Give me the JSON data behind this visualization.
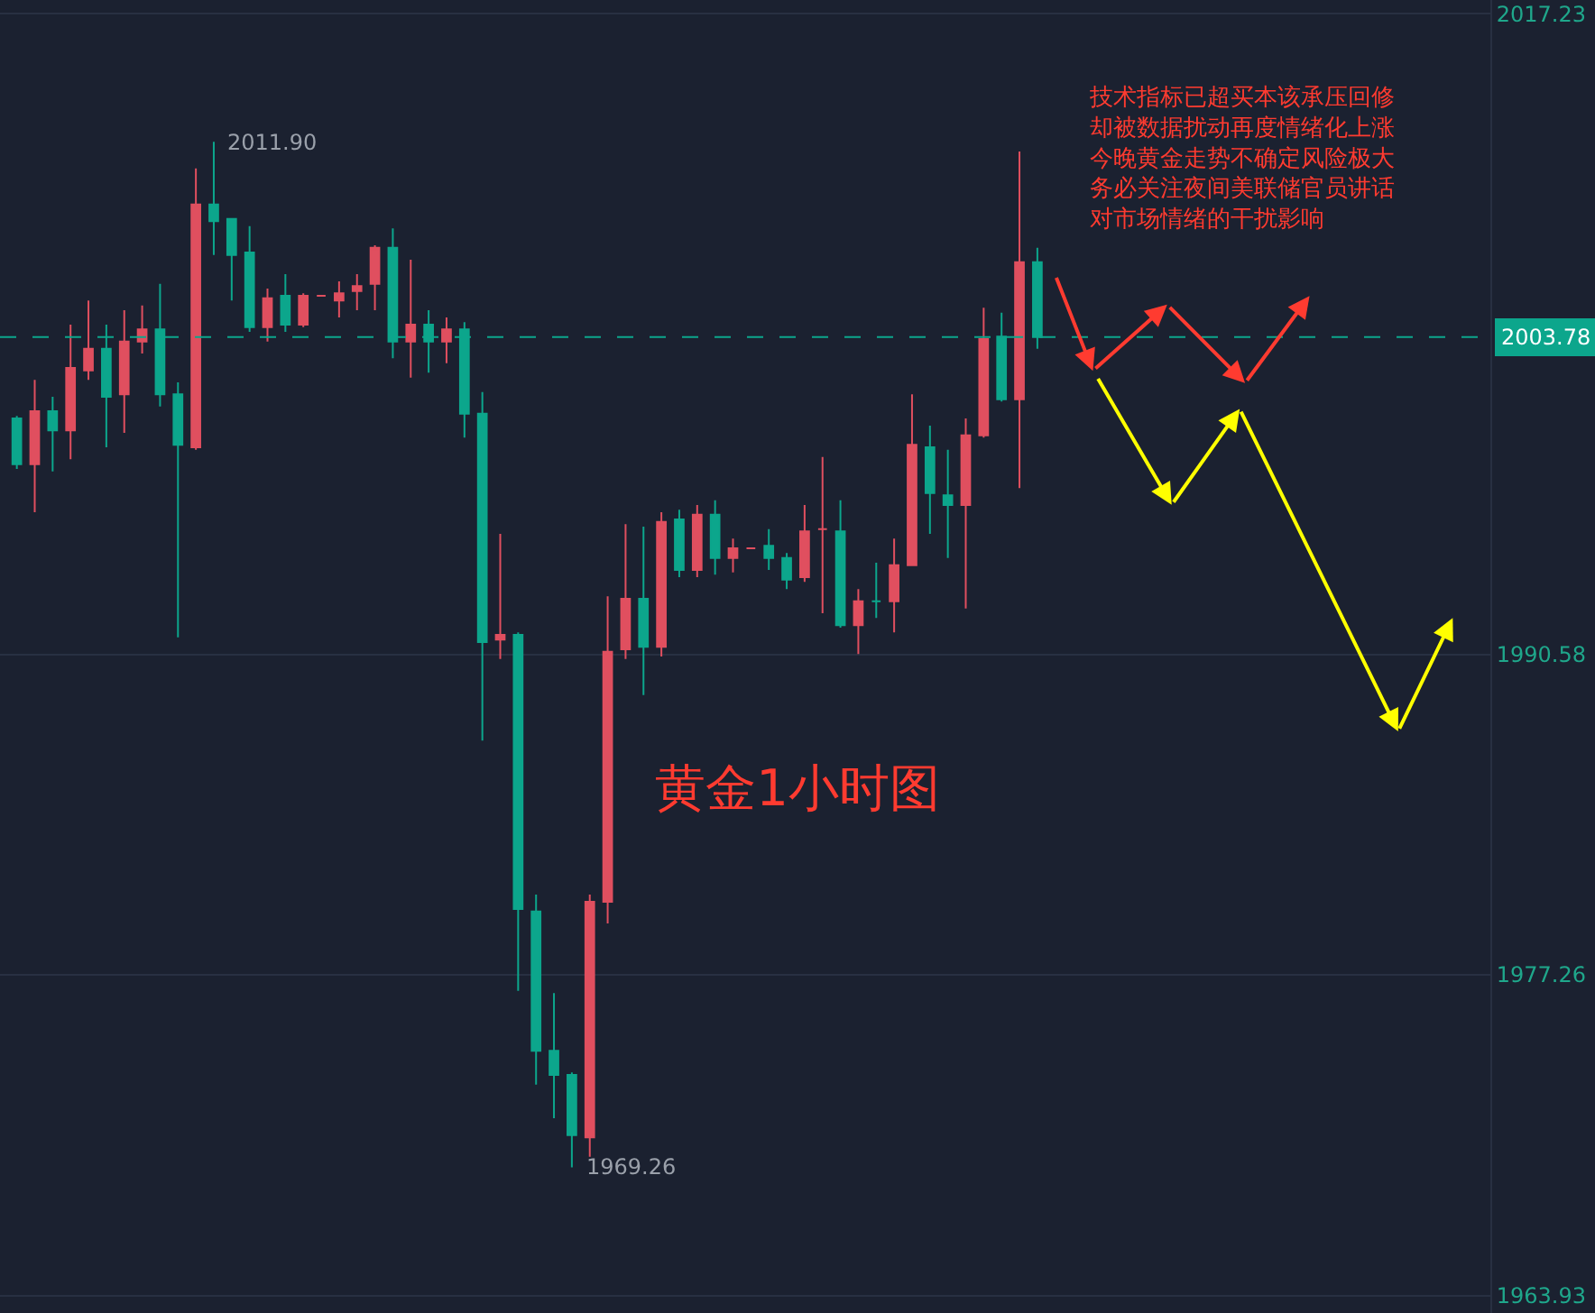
{
  "chart_data": {
    "type": "candlestick",
    "title": "黄金1小时图",
    "categories": [
      null,
      null,
      null,
      null,
      null,
      null,
      null,
      null,
      null,
      null,
      null,
      null,
      null,
      null,
      null,
      null,
      null,
      null,
      null,
      null,
      null,
      null,
      null,
      null,
      null,
      null,
      null,
      null,
      null,
      null,
      null,
      null,
      null,
      null,
      null,
      null,
      null,
      null,
      null,
      null,
      null,
      null,
      null,
      null,
      null,
      null,
      null,
      null,
      null,
      null,
      null,
      null,
      null,
      null,
      null,
      null,
      null,
      null,
      null,
      null,
      null,
      null,
      null,
      null,
      null,
      null,
      null,
      null,
      null,
      null,
      null,
      null,
      null,
      null,
      null,
      null,
      null,
      null,
      null,
      null,
      null,
      null,
      null
    ],
    "ohlc": [
      [
        2000.4,
        2000.5,
        1998.3,
        1998.5
      ],
      [
        1998.5,
        2002.0,
        1996.5,
        2000.7
      ],
      [
        2000.7,
        2001.3,
        1998.2,
        1999.9
      ],
      [
        1999.9,
        2004.3,
        1998.7,
        2002.5
      ],
      [
        2002.4,
        2005.3,
        2002.0,
        2003.3
      ],
      [
        2003.3,
        2004.3,
        1999.2,
        2001.3
      ],
      [
        2001.4,
        2004.9,
        1999.8,
        2003.6
      ],
      [
        2003.6,
        2005.1,
        2003.1,
        2004.1
      ],
      [
        2004.1,
        2006.0,
        2000.9,
        2001.4
      ],
      [
        2001.4,
        2001.9,
        1991.3,
        1999.3
      ],
      [
        1999.2,
        2010.8,
        1999.1,
        2009.3
      ],
      [
        2009.3,
        2011.9,
        2007.2,
        2008.6
      ],
      [
        2008.7,
        2008.7,
        2005.3,
        2007.2
      ],
      [
        2007.3,
        2008.4,
        2004.0,
        2004.2
      ],
      [
        2004.2,
        2005.8,
        2003.6,
        2005.4
      ],
      [
        2005.5,
        2006.4,
        2004.0,
        2004.3
      ],
      [
        2004.3,
        2005.6,
        2004.2,
        2005.5
      ],
      [
        2005.5,
        2005.5,
        2005.5,
        2005.5
      ],
      [
        2005.3,
        2006.1,
        2004.6,
        2005.6
      ],
      [
        2005.7,
        2006.4,
        2004.9,
        2005.9
      ],
      [
        2006.0,
        2007.6,
        2004.9,
        2007.5
      ],
      [
        2007.5,
        2008.3,
        2002.9,
        2003.6
      ],
      [
        2003.6,
        2007.0,
        2002.1,
        2004.3
      ],
      [
        2004.3,
        2004.9,
        2002.3,
        2003.6
      ],
      [
        2003.6,
        2004.6,
        2002.7,
        2004.1
      ],
      [
        2004.1,
        2004.4,
        1999.6,
        2000.6
      ],
      [
        2000.6,
        2001.5,
        1987.0,
        1991.1
      ],
      [
        1991.2,
        1995.6,
        1990.4,
        1991.4
      ],
      [
        1991.4,
        1991.5,
        1976.6,
        1980.0
      ],
      [
        1979.9,
        1980.6,
        1972.7,
        1974.1
      ],
      [
        1974.1,
        1976.5,
        1971.3,
        1973.1
      ],
      [
        1973.1,
        1973.2,
        1969.26,
        1970.6
      ],
      [
        1970.5,
        1980.6,
        1969.7,
        1980.3
      ],
      [
        1980.3,
        1993.0,
        1979.4,
        1990.7
      ],
      [
        1990.8,
        1996.0,
        1990.4,
        1992.9
      ],
      [
        1992.9,
        1995.9,
        1988.9,
        1990.9
      ],
      [
        1990.9,
        1996.5,
        1990.5,
        1996.1
      ],
      [
        1996.2,
        1996.6,
        1993.8,
        1994.1
      ],
      [
        1994.1,
        1996.8,
        1993.8,
        1996.4
      ],
      [
        1996.4,
        1997.0,
        1993.9,
        1994.6
      ],
      [
        1994.6,
        1995.4,
        1994.0,
        1995.0
      ],
      [
        1995.0,
        1995.0,
        1995.0,
        1995.0
      ],
      [
        1995.1,
        1995.8,
        1994.1,
        1994.6
      ],
      [
        1994.6,
        1994.8,
        1993.3,
        1993.7
      ],
      [
        1993.8,
        1996.8,
        1993.6,
        1995.7
      ],
      [
        1995.8,
        1998.8,
        1992.3,
        1995.8
      ],
      [
        1995.7,
        1997.0,
        1991.7,
        1991.8
      ],
      [
        1991.8,
        1993.3,
        1990.6,
        1992.8
      ],
      [
        1992.8,
        1994.4,
        1992.1,
        1992.8
      ],
      [
        1992.8,
        1995.4,
        1991.5,
        1994.3
      ],
      [
        1994.3,
        2001.4,
        1994.3,
        1999.3
      ],
      [
        1999.2,
        2000.1,
        1995.6,
        1997.3
      ],
      [
        1997.2,
        1999.1,
        1994.6,
        1996.8
      ],
      [
        1996.8,
        2000.4,
        1992.5,
        1999.7
      ],
      [
        1999.7,
        2005.0,
        1999.6,
        2003.7
      ],
      [
        2003.8,
        2004.8,
        2001.1,
        2001.2
      ],
      [
        2001.2,
        2011.5,
        1997.5,
        2006.9
      ],
      [
        2006.9,
        2007.5,
        2003.3,
        2003.78
      ],
      null,
      null,
      null,
      null,
      null,
      null,
      null,
      null,
      null,
      null,
      null,
      null,
      null,
      null,
      null,
      null,
      null,
      null,
      null,
      null,
      null,
      null,
      null,
      null,
      null
    ],
    "colors": [
      "#0ca68c",
      "#e04f5f",
      "#0ca68c",
      "#e04f5f",
      "#e04f5f",
      "#0ca68c",
      "#e04f5f",
      "#e04f5f",
      "#0ca68c",
      "#0ca68c",
      "#e04f5f",
      "#0ca68c",
      "#0ca68c",
      "#0ca68c",
      "#e04f5f",
      "#0ca68c",
      "#e04f5f",
      "#e04f5f",
      "#e04f5f",
      "#e04f5f",
      "#e04f5f",
      "#0ca68c",
      "#e04f5f",
      "#0ca68c",
      "#e04f5f",
      "#0ca68c",
      "#0ca68c",
      "#e04f5f",
      "#0ca68c",
      "#0ca68c",
      "#0ca68c",
      "#0ca68c",
      "#e04f5f",
      "#e04f5f",
      "#e04f5f",
      "#0ca68c",
      "#e04f5f",
      "#0ca68c",
      "#e04f5f",
      "#0ca68c",
      "#e04f5f",
      "#e04f5f",
      "#0ca68c",
      "#0ca68c",
      "#e04f5f",
      "#e04f5f",
      "#0ca68c",
      "#e04f5f",
      "#0ca68c",
      "#e04f5f",
      "#e04f5f",
      "#0ca68c",
      "#0ca68c",
      "#e04f5f",
      "#e04f5f",
      "#0ca68c",
      "#e04f5f",
      "#0ca68c",
      null,
      null,
      null,
      null,
      null,
      null,
      null,
      null,
      null,
      null,
      null,
      null,
      null,
      null,
      null,
      null,
      null,
      null,
      null,
      null,
      null,
      null,
      null,
      null,
      null
    ],
    "ylim": [
      1963.2,
      2017.8
    ],
    "yticks": [
      1963.93,
      1977.26,
      1990.58,
      2017.23
    ],
    "tick_labels": "y",
    "grid": "y",
    "ref_lines": [
      {
        "axis": "y",
        "value": 2003.78,
        "label": "2003.78",
        "color": "#0ca68c",
        "line_style": "dashed"
      }
    ],
    "annotations": [
      "2011.90",
      "1969.26",
      "技术指标已超买本该承压回修却被数据扰动再度情绪化上涨今晚黄金走势不确定风险极大务必关注夜间美联储官员讲话对市场情绪的干扰影响"
    ]
  }
}
